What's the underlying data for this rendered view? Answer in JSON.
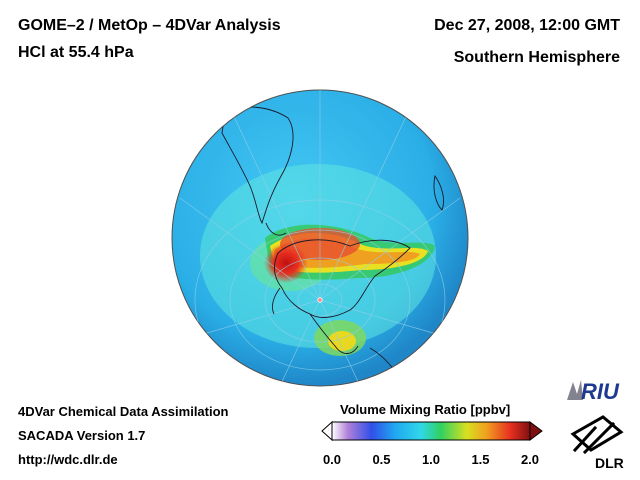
{
  "header": {
    "title_line1": "GOME–2 / MetOp – 4DVar Analysis",
    "title_line2": "HCl at 55.4 hPa",
    "datetime": "Dec 27, 2008, 12:00 GMT",
    "hemisphere": "Southern Hemisphere"
  },
  "footer": {
    "line1": "4DVar Chemical Data Assimilation",
    "line2": "SACADA Version 1.7",
    "line3": "http://wdc.dlr.de"
  },
  "colorbar": {
    "title": "Volume Mixing Ratio [ppbv]",
    "min": 0.0,
    "max": 2.0,
    "ticks": [
      "0.0",
      "0.5",
      "1.0",
      "1.5",
      "2.0"
    ],
    "colors": [
      "#ffffff",
      "#b080d8",
      "#3050e8",
      "#20a8f0",
      "#30d8e8",
      "#30d060",
      "#d8e020",
      "#f0a020",
      "#e83020",
      "#801010"
    ]
  },
  "logos": {
    "riu": "RIU",
    "dlr": "DLR"
  },
  "map": {
    "ocean_color": "#2bb5ea",
    "high_color": "#c81818"
  }
}
